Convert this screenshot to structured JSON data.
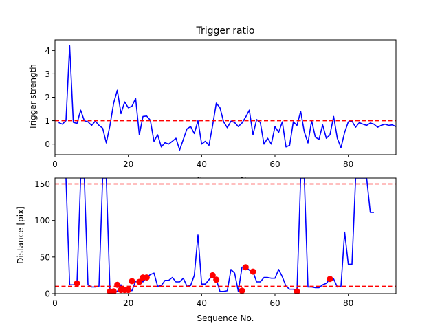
{
  "chart_data": [
    {
      "type": "line",
      "title": "Trigger ratio",
      "xlabel": "Sequence No.",
      "ylabel": "Trigger strength",
      "xlim": [
        0,
        93
      ],
      "ylim": [
        -0.45,
        4.45
      ],
      "xticks": [
        0,
        20,
        40,
        60,
        80
      ],
      "yticks": [
        0,
        1,
        2,
        3,
        4
      ],
      "grid": false,
      "series": [
        {
          "color": "#0000ff",
          "x": [
            1,
            2,
            3,
            4,
            5,
            6,
            7,
            8,
            9,
            10,
            11,
            12,
            13,
            14,
            15,
            16,
            17,
            18,
            19,
            20,
            21,
            22,
            23,
            24,
            25,
            26,
            27,
            28,
            29,
            30,
            31,
            32,
            33,
            34,
            35,
            36,
            37,
            38,
            39,
            40,
            41,
            42,
            43,
            44,
            45,
            46,
            47,
            48,
            49,
            50,
            51,
            52,
            53,
            54,
            55,
            56,
            57,
            58,
            59,
            60,
            61,
            62,
            63,
            64,
            65,
            66,
            67,
            68,
            69,
            70,
            71,
            72,
            73,
            74,
            75,
            76,
            77,
            78,
            79,
            80,
            81,
            82,
            83,
            84,
            85,
            86,
            87,
            88,
            89,
            90,
            91,
            92,
            93
          ],
          "values": [
            0.92,
            0.85,
            1.0,
            4.2,
            0.93,
            0.88,
            1.45,
            1.0,
            0.95,
            0.8,
            0.98,
            0.8,
            0.68,
            0.05,
            0.8,
            1.75,
            2.3,
            1.3,
            1.8,
            1.55,
            1.62,
            1.95,
            0.4,
            1.18,
            1.2,
            1.02,
            0.12,
            0.4,
            -0.12,
            0.06,
            0.0,
            0.12,
            0.25,
            -0.25,
            0.2,
            0.65,
            0.75,
            0.45,
            1.0,
            0.0,
            0.12,
            -0.05,
            0.8,
            1.75,
            1.55,
            0.95,
            0.7,
            0.98,
            0.92,
            0.75,
            0.9,
            1.15,
            1.45,
            0.4,
            1.05,
            0.92,
            0.0,
            0.25,
            0.0,
            0.75,
            0.5,
            0.95,
            -0.12,
            -0.05,
            0.95,
            0.8,
            1.4,
            0.52,
            0.05,
            1.0,
            0.3,
            0.2,
            0.82,
            0.25,
            0.4,
            1.18,
            0.25,
            -0.15,
            0.5,
            0.95,
            0.98,
            0.72,
            0.92,
            0.85,
            0.8,
            0.9,
            0.85,
            0.72,
            0.8,
            0.85,
            0.8,
            0.82,
            0.75
          ]
        }
      ],
      "thresholds": [
        {
          "value": 1.0,
          "color": "#ff0000",
          "style": "dashed"
        }
      ]
    },
    {
      "type": "line",
      "title": "",
      "xlabel": "Sequence No.",
      "ylabel": "Distance [pix]",
      "xlim": [
        0,
        93
      ],
      "ylim": [
        0,
        158
      ],
      "xticks": [
        0,
        20,
        40,
        60,
        80
      ],
      "yticks": [
        0,
        50,
        100,
        150
      ],
      "grid": false,
      "series": [
        {
          "color": "#0000ff",
          "x": [
            3,
            4,
            5,
            6,
            7,
            8,
            9,
            10,
            11,
            12,
            13,
            14,
            15,
            16,
            17,
            18,
            19,
            20,
            21,
            22,
            23,
            24,
            25,
            26,
            27,
            28,
            29,
            30,
            31,
            32,
            33,
            34,
            35,
            36,
            37,
            38,
            39,
            40,
            41,
            42,
            43,
            44,
            45,
            46,
            47,
            48,
            49,
            50,
            51,
            52,
            53,
            54,
            55,
            56,
            57,
            58,
            59,
            60,
            61,
            62,
            63,
            64,
            65,
            66,
            67,
            68,
            69,
            70,
            71,
            72,
            73,
            74,
            75,
            76,
            77,
            78,
            79,
            80,
            81,
            82,
            83,
            84,
            85,
            86,
            87
          ],
          "values": [
            158,
            12,
            12,
            14,
            158,
            158,
            12,
            9,
            9,
            10,
            158,
            158,
            3,
            3,
            3,
            12,
            5,
            5,
            4,
            17,
            18,
            16,
            22,
            26,
            28,
            10,
            11,
            18,
            18,
            22,
            16,
            16,
            21,
            10,
            11,
            25,
            80,
            13,
            13,
            19,
            25,
            19,
            3,
            3,
            4,
            33,
            28,
            3,
            36,
            37,
            32,
            30,
            16,
            16,
            22,
            22,
            21,
            21,
            33,
            23,
            10,
            6,
            6,
            3,
            158,
            158,
            9,
            9,
            8,
            8,
            12,
            14,
            20,
            20,
            9,
            10,
            84,
            40,
            40,
            158,
            158,
            158,
            158,
            111,
            111
          ]
        },
        {
          "type": "scatter",
          "color": "#ff0000",
          "x": [
            6,
            15,
            16,
            17,
            18,
            19,
            20,
            21,
            23,
            24,
            25,
            43,
            44,
            51,
            52,
            54,
            66,
            75
          ],
          "values": [
            14,
            3,
            3,
            12,
            5,
            5,
            5,
            17,
            16,
            22,
            22,
            25,
            19,
            4,
            36,
            30,
            3,
            20
          ]
        }
      ],
      "thresholds": [
        {
          "value": 150,
          "color": "#ff0000",
          "style": "dashed"
        },
        {
          "value": 10,
          "color": "#ff0000",
          "style": "dashed"
        }
      ]
    }
  ]
}
